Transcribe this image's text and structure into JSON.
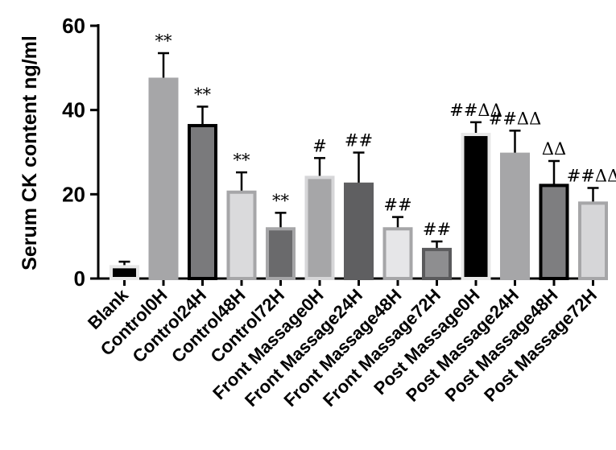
{
  "chart_data": {
    "type": "bar",
    "ylabel": "Serum CK content ng/ml",
    "ylim": [
      0,
      60
    ],
    "yticks": [
      0,
      20,
      40,
      60
    ],
    "categories": [
      "Blank",
      "Control0H",
      "Control24H",
      "Control48H",
      "Control72H",
      "Front Massage0H",
      "Front Massage24H",
      "Front Massage48H",
      "Front Massage72H",
      "Post Massage0H",
      "Post Massage24H",
      "Post Massage48H",
      "Post Massage72H"
    ],
    "values": [
      2.8,
      47.3,
      36.3,
      20.5,
      11.8,
      24.0,
      22.4,
      11.8,
      6.9,
      34.2,
      29.5,
      22.1,
      17.9
    ],
    "errors": [
      1.2,
      6.2,
      4.5,
      4.7,
      3.8,
      4.6,
      7.5,
      2.8,
      1.9,
      2.9,
      5.6,
      5.8,
      3.6
    ],
    "significance": [
      "",
      "**",
      "**",
      "**",
      "**",
      "#",
      "##",
      "##",
      "##",
      "##ΔΔ",
      "##ΔΔ",
      "ΔΔ",
      "##ΔΔ"
    ],
    "colors": {
      "fills": [
        "#000000",
        "#a6a6a8",
        "#7a7a7c",
        "#dadadc",
        "#6a6a6c",
        "#a6a6a8",
        "#5f5f61",
        "#e6e6e8",
        "#8e8e90",
        "#000000",
        "#a6a6a8",
        "#7e7e80",
        "#d6d6d8"
      ],
      "strokes": [
        "#e8e8e8",
        "#a6a6a8",
        "#000000",
        "#a6a6a8",
        "#a6a6a8",
        "#d6d6d8",
        "#5f5f61",
        "#a6a6a8",
        "#5a5a5c",
        "#e8e8e8",
        "#a6a6a8",
        "#000000",
        "#a6a6a8"
      ]
    }
  }
}
